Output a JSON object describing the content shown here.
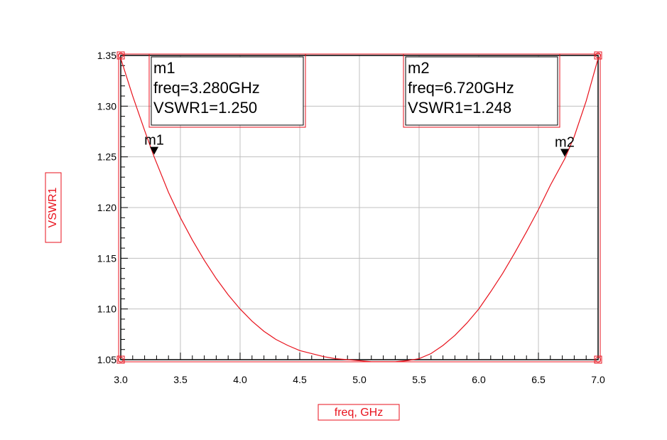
{
  "chart_data": {
    "type": "line",
    "xlabel": "freq, GHz",
    "ylabel": "VSWR1",
    "xlim": [
      3.0,
      7.0
    ],
    "ylim": [
      1.05,
      1.35
    ],
    "x_ticks": [
      "3.0",
      "3.5",
      "4.0",
      "4.5",
      "5.0",
      "5.5",
      "6.0",
      "6.5",
      "7.0"
    ],
    "y_ticks": [
      "1.05",
      "1.10",
      "1.15",
      "1.20",
      "1.25",
      "1.30",
      "1.35"
    ],
    "grid": true,
    "series": [
      {
        "color": "#e8121c",
        "x": [
          3.0,
          3.1,
          3.2,
          3.28,
          3.4,
          3.5,
          3.6,
          3.7,
          3.8,
          3.9,
          4.0,
          4.1,
          4.2,
          4.3,
          4.4,
          4.5,
          4.6,
          4.7,
          4.8,
          4.9,
          5.0,
          5.1,
          5.2,
          5.3,
          5.4,
          5.5,
          5.6,
          5.7,
          5.8,
          5.9,
          6.0,
          6.1,
          6.2,
          6.3,
          6.4,
          6.5,
          6.6,
          6.72,
          6.8,
          6.9,
          7.0
        ],
        "values": [
          1.347,
          1.31,
          1.276,
          1.25,
          1.215,
          1.19,
          1.168,
          1.148,
          1.13,
          1.114,
          1.1,
          1.088,
          1.078,
          1.07,
          1.064,
          1.059,
          1.056,
          1.053,
          1.051,
          1.05,
          1.049,
          1.048,
          1.048,
          1.048,
          1.049,
          1.051,
          1.056,
          1.064,
          1.074,
          1.086,
          1.1,
          1.117,
          1.135,
          1.155,
          1.176,
          1.198,
          1.222,
          1.248,
          1.27,
          1.305,
          1.347
        ]
      }
    ],
    "markers": [
      {
        "name": "m1",
        "x": 3.28,
        "y": 1.25,
        "freq": "freq=3.280GHz",
        "value": "VSWR1=1.250"
      },
      {
        "name": "m2",
        "x": 6.72,
        "y": 1.248,
        "freq": "freq=6.720GHz",
        "value": "VSWR1=1.248"
      }
    ],
    "colors": {
      "trace": "#e8121c",
      "grid": "#c0c0c0",
      "frame": "#000000"
    }
  }
}
